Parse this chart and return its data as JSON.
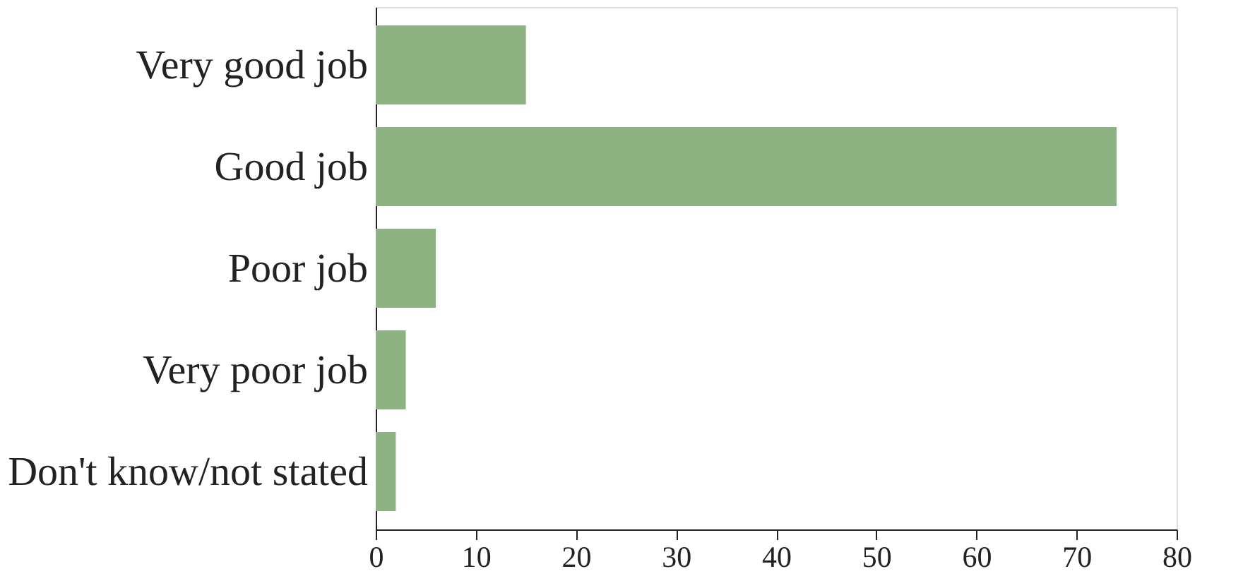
{
  "chart_data": {
    "type": "bar",
    "orientation": "horizontal",
    "categories": [
      "Very good job",
      "Good job",
      "Poor job",
      "Very poor job",
      "Don't know/not stated"
    ],
    "values": [
      15,
      74,
      6,
      3,
      2
    ],
    "color": "#8db282",
    "xlim": [
      0,
      80
    ],
    "xticks": [
      0,
      10,
      20,
      30,
      40,
      50,
      60,
      70,
      80
    ],
    "grid": false
  }
}
